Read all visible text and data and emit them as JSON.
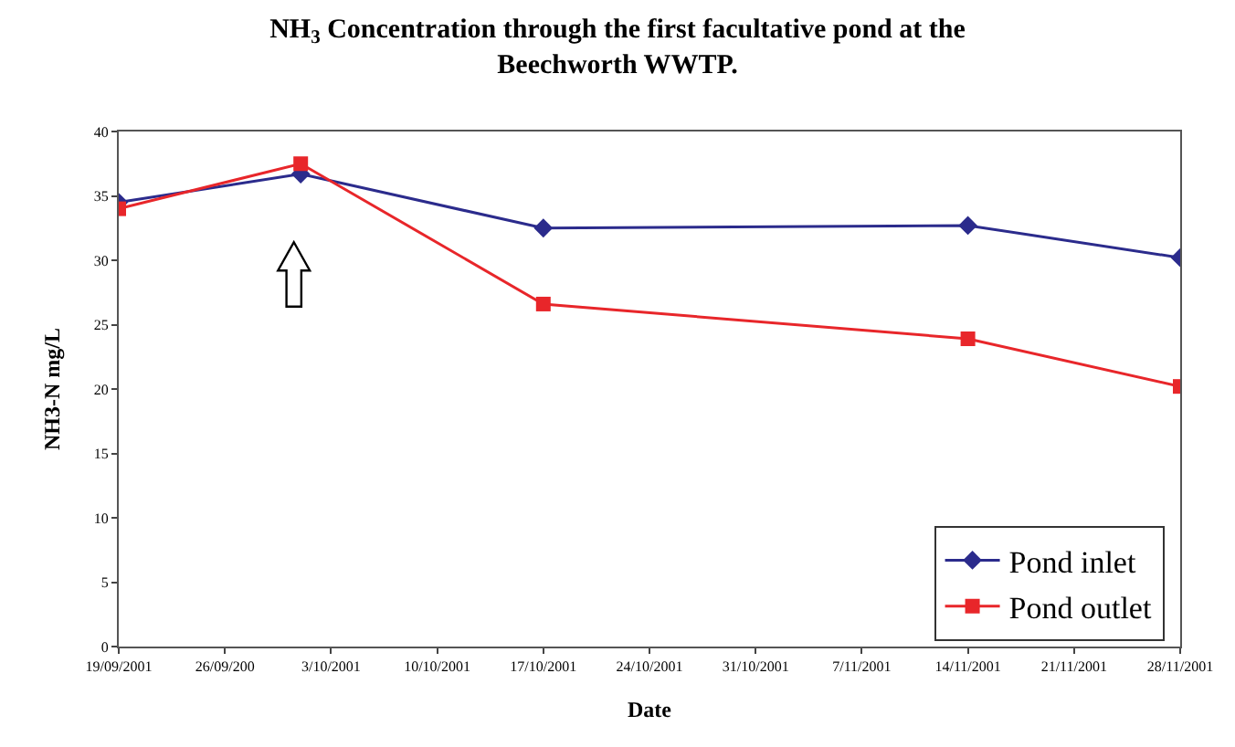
{
  "chart_data": {
    "type": "line",
    "title": "NH$_{3}$ Concentration through the first facultative pond at the Beechworth WWTP.",
    "xlabel": "Date",
    "ylabel": "NH3-N mg/L",
    "x": [
      "2001-09-19",
      "2001-10-01",
      "2001-10-17",
      "2001-11-14",
      "2001-11-28"
    ],
    "series": [
      {
        "name": "Pond inlet",
        "color": "#2b2b8c",
        "marker": "diamond",
        "values": [
          34.5,
          36.7,
          32.5,
          32.7,
          30.2
        ]
      },
      {
        "name": "Pond outlet",
        "color": "#e8262a",
        "marker": "square",
        "values": [
          34.0,
          37.5,
          26.6,
          23.9,
          20.2
        ]
      }
    ],
    "xlim": [
      "2001-09-19",
      "2001-11-28"
    ],
    "xticks": [
      {
        "value": "2001-09-19",
        "label": "19/09/2001"
      },
      {
        "value": "2001-09-26",
        "label": "26/09/200"
      },
      {
        "value": "2001-10-03",
        "label": "3/10/2001"
      },
      {
        "value": "2001-10-10",
        "label": "10/10/2001"
      },
      {
        "value": "2001-10-17",
        "label": "17/10/2001"
      },
      {
        "value": "2001-10-24",
        "label": "24/10/2001"
      },
      {
        "value": "2001-10-31",
        "label": "31/10/2001"
      },
      {
        "value": "2001-11-07",
        "label": "7/11/2001"
      },
      {
        "value": "2001-11-14",
        "label": "14/11/2001"
      },
      {
        "value": "2001-11-21",
        "label": "21/11/2001"
      },
      {
        "value": "2001-11-28",
        "label": "28/11/2001"
      }
    ],
    "ylim": [
      0,
      40
    ],
    "yticks": [
      0,
      5,
      10,
      15,
      20,
      25,
      30,
      35,
      40
    ],
    "legend": "bottom right",
    "line_style": "solid"
  }
}
